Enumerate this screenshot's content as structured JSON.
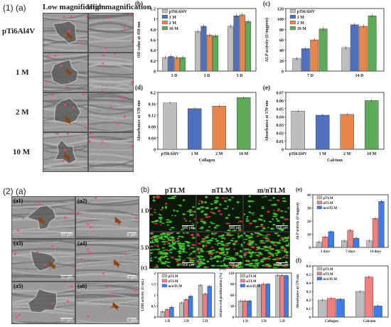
{
  "part1": {
    "label": "(1)",
    "sub_a": "(a)",
    "col_low": "Low magnification",
    "col_high": "High magnification",
    "rows": [
      "pTi6Al4V",
      "1 M",
      "2 M",
      "10 M"
    ]
  },
  "part2": {
    "label": "(2)",
    "sub_a": "(a)",
    "sub_b": "(b)",
    "sem_tags": [
      "(a1)",
      "(a2)",
      "(a3)",
      "(a4)",
      "(a5)",
      "(a6)"
    ],
    "sem_scales": [
      "10 μm",
      "5 μm",
      "10 μm",
      "5 μm",
      "10 μm",
      "5 μm"
    ],
    "fl_cols": [
      "pTLM",
      "nTLM",
      "m/nTLM"
    ],
    "fl_rows": [
      "1 D",
      "5 D"
    ],
    "fl_scale": "500 μm"
  },
  "chart_data": [
    {
      "id": "1b",
      "panel": "(b)",
      "type": "bar",
      "categories": [
        "1 D",
        "3 D",
        "5 D"
      ],
      "ylabel": "OD value at 450 nm",
      "ylim": [
        0,
        1.2
      ],
      "yticks": [
        0,
        0.2,
        0.4,
        0.6,
        0.8,
        1.0,
        1.2
      ],
      "legend": "top-left",
      "series": [
        {
          "name": "pTi6Al4V",
          "color": "#bdbdbd",
          "values": [
            0.26,
            0.76,
            0.86
          ]
        },
        {
          "name": "1 M",
          "color": "#4f6fbf",
          "values": [
            0.28,
            0.86,
            1.06
          ]
        },
        {
          "name": "2 M",
          "color": "#e8864a",
          "values": [
            0.26,
            0.69,
            1.08
          ]
        },
        {
          "name": "10 M",
          "color": "#5cab56",
          "values": [
            0.26,
            0.68,
            0.95
          ]
        }
      ]
    },
    {
      "id": "1c",
      "panel": "(c)",
      "type": "bar",
      "categories": [
        "7 D",
        "14 D"
      ],
      "ylabel": "ALP activity (U/mgprot)",
      "ylim": [
        0,
        120
      ],
      "yticks": [
        0,
        20,
        40,
        60,
        80,
        100,
        120
      ],
      "legend": "top",
      "series": [
        {
          "name": "pTi6Al4V",
          "color": "#bdbdbd",
          "values": [
            24,
            45
          ]
        },
        {
          "name": "1 M",
          "color": "#4f6fbf",
          "values": [
            43,
            89
          ]
        },
        {
          "name": "2 M",
          "color": "#e8864a",
          "values": [
            60,
            86
          ]
        },
        {
          "name": "10 M",
          "color": "#5cab56",
          "values": [
            81,
            106
          ]
        }
      ]
    },
    {
      "id": "1d",
      "panel": "(d)",
      "type": "bar",
      "categories": [
        "pTi6Al4V",
        "1 M",
        "2 M",
        "10 M"
      ],
      "xlabel": "Collagen",
      "ylabel": "Absorbance at 570 nm",
      "ylim": [
        0,
        0.2
      ],
      "yticks": [
        0,
        0.04,
        0.08,
        0.12,
        0.16,
        0.2
      ],
      "colors": [
        "#bdbdbd",
        "#4f6fbf",
        "#e8864a",
        "#5cab56"
      ],
      "values": [
        0.163,
        0.143,
        0.152,
        0.182
      ]
    },
    {
      "id": "1e",
      "panel": "(e)",
      "type": "bar",
      "categories": [
        "pTi6Al4V",
        "1 M",
        "2 M",
        "10 M"
      ],
      "xlabel": "Calcium",
      "ylabel": "Absorbance at 570 nm",
      "ylim": [
        0,
        0.07
      ],
      "yticks": [
        0,
        0.01,
        0.02,
        0.03,
        0.04,
        0.05,
        0.06,
        0.07
      ],
      "colors": [
        "#bdbdbd",
        "#4f6fbf",
        "#e8864a",
        "#5cab56"
      ],
      "values": [
        0.047,
        0.042,
        0.043,
        0.06
      ]
    },
    {
      "id": "2c",
      "panel": "(c)",
      "type": "bar",
      "categories": [
        "1 D",
        "3 D",
        "5 D"
      ],
      "ylabel": "LDH activity (U/mL)",
      "ylim": [
        0,
        2.0
      ],
      "yticks": [
        0,
        0.5,
        1.0,
        1.5,
        2.0
      ],
      "legend": "top-left",
      "series": [
        {
          "name": "pTLM",
          "color": "#bdbdbd",
          "values": [
            0.25,
            0.65,
            1.45
          ]
        },
        {
          "name": "nTLM",
          "color": "#f08080",
          "values": [
            0.35,
            0.8,
            1.05
          ]
        },
        {
          "name": "m/nTLM",
          "color": "#3b7ded",
          "values": [
            0.45,
            0.95,
            1.4
          ]
        }
      ]
    },
    {
      "id": "2d",
      "panel": "(d)",
      "type": "bar",
      "categories": [
        "1 D",
        "3 D",
        "5 D"
      ],
      "ylabel": "relative cell proliferation (%)",
      "ylim": [
        0,
        120
      ],
      "yticks": [
        0,
        30,
        60,
        90,
        120
      ],
      "legend": "top-left",
      "series": [
        {
          "name": "pTLM",
          "color": "#bdbdbd",
          "values": [
            44,
            88,
            114
          ]
        },
        {
          "name": "nTLM",
          "color": "#f08080",
          "values": [
            44,
            90,
            114
          ]
        },
        {
          "name": "m/nTLM",
          "color": "#3b7ded",
          "values": [
            44,
            90,
            113
          ]
        }
      ]
    },
    {
      "id": "2e",
      "panel": "(e)",
      "type": "bar",
      "categories": [
        "3 days",
        "7 days",
        "14 days"
      ],
      "ylabel": "ALP activity (U/mgprot)",
      "ylim": [
        0,
        40
      ],
      "yticks": [
        0,
        10,
        20,
        30,
        40
      ],
      "legend": "top-left",
      "series": [
        {
          "name": "pTLM",
          "color": "#bdbdbd",
          "values": [
            4,
            5,
            5
          ]
        },
        {
          "name": "nTLM",
          "color": "#f08080",
          "values": [
            8,
            13,
            22
          ]
        },
        {
          "name": "m/nTLM",
          "color": "#3b7ded",
          "values": [
            12,
            7,
            35
          ]
        }
      ]
    },
    {
      "id": "2f",
      "panel": "(f)",
      "type": "bar",
      "categories": [
        "Collagen",
        "Calcium"
      ],
      "ylabel": "Absorbance at 570 nm",
      "ylim": [
        0,
        0.6
      ],
      "yticks": [
        0,
        0.1,
        0.2,
        0.3,
        0.4,
        0.5,
        0.6
      ],
      "legend": "top-left",
      "series": [
        {
          "name": "pTLM",
          "color": "#bdbdbd",
          "values": [
            0.2,
            0.3
          ]
        },
        {
          "name": "nTLM",
          "color": "#f08080",
          "values": [
            0.22,
            0.47
          ]
        },
        {
          "name": "m/nTLM",
          "color": "#3b7ded",
          "values": [
            0.21,
            0.13
          ]
        }
      ]
    }
  ]
}
